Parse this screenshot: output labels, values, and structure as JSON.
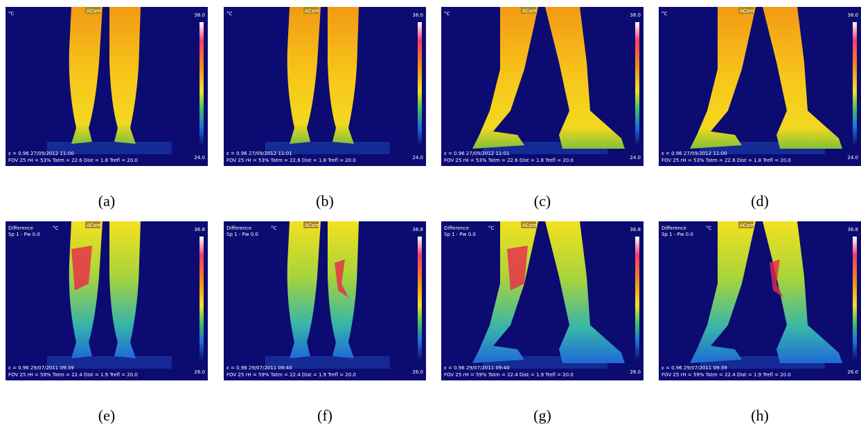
{
  "panels": [
    {
      "label": "(a)",
      "unit": "°C",
      "brand": "ACam",
      "max": "38.0",
      "min": "24.0",
      "line1": "ε = 0.96  27/09/2012 11:00",
      "line2": "FOV 25  rH = 53%  Tatm = 22.6  Dist = 1.8  Trefl = 20.0"
    },
    {
      "label": "(b)",
      "unit": "°C",
      "brand": "ACam",
      "max": "38.0",
      "min": "24.0",
      "line1": "ε = 0.96  27/09/2012 11:01",
      "line2": "FOV 25  rH = 53%  Tatm = 22.6  Dist = 1.8  Trefl = 20.0"
    },
    {
      "label": "(c)",
      "unit": "°C",
      "brand": "ACam",
      "max": "38.0",
      "min": "24.0",
      "line1": "ε = 0.96  27/09/2012 11:01",
      "line2": "FOV 25  rH = 53%  Tatm = 22.6  Dist = 1.8  Trefl = 20.0"
    },
    {
      "label": "(d)",
      "unit": "°C",
      "brand": "ACam",
      "max": "38.0",
      "min": "24.0",
      "line1": "ε = 0.96  27/09/2012 11:00",
      "line2": "FOV 25  rH = 53%  Tatm = 22.6  Dist = 1.8  Trefl = 20.0"
    },
    {
      "label": "(e)",
      "mode": "Difference",
      "spot": "Sp 1 - Pw 0.0",
      "unit": "°C",
      "brand": "ACam",
      "max": "36.8",
      "min": "26.0",
      "line1": "ε = 0.96  29/07/2011 09:39",
      "line2": "FOV 25  rH = 59%  Tatm = 22.4  Dist = 1.9  Trefl = 20.0"
    },
    {
      "label": "(f)",
      "mode": "Difference",
      "spot": "Sp 1 - Pw 0.0",
      "unit": "°C",
      "brand": "ACam",
      "max": "36.8",
      "min": "26.0",
      "line1": "ε = 0.96  29/07/2011 09:40",
      "line2": "FOV 25  rH = 59%  Tatm = 22.4  Dist = 1.9  Trefl = 20.0"
    },
    {
      "label": "(g)",
      "mode": "Difference",
      "spot": "Sp 1 - Pw 0.0",
      "unit": "°C",
      "brand": "ACam",
      "max": "36.8",
      "min": "26.0",
      "line1": "ε = 0.96  29/07/2011 09:40",
      "line2": "FOV 25  rH = 59%  Tatm = 22.4  Dist = 1.9  Trefl = 20.0"
    },
    {
      "label": "(h)",
      "mode": "Difference",
      "spot": "Sp 1 - Pw 0.0",
      "unit": "°C",
      "brand": "ACam",
      "max": "36.8",
      "min": "26.0",
      "line1": "ε = 0.96  29/07/2011 09:39",
      "line2": "FOV 25  rH = 59%  Tatm = 22.4  Dist = 1.9  Trefl = 20.0"
    }
  ]
}
